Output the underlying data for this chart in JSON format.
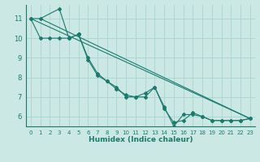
{
  "title": "",
  "xlabel": "Humidex (Indice chaleur)",
  "ylabel": "",
  "bg_color": "#cce8e4",
  "grid_color": "#aad4ce",
  "line_color": "#1a7a6e",
  "xlim": [
    -0.5,
    23.5
  ],
  "ylim": [
    5.5,
    11.7
  ],
  "yticks": [
    6,
    7,
    8,
    9,
    10,
    11
  ],
  "xticks": [
    0,
    1,
    2,
    3,
    4,
    5,
    6,
    7,
    8,
    9,
    10,
    11,
    12,
    13,
    14,
    15,
    16,
    17,
    18,
    19,
    20,
    21,
    22,
    23
  ],
  "line1_x": [
    0,
    1,
    3,
    4,
    5,
    5,
    6,
    7,
    8,
    9,
    10,
    11,
    12,
    13,
    14,
    15,
    16,
    17,
    18,
    19,
    20,
    21,
    22,
    23
  ],
  "line1_y": [
    11.0,
    11.0,
    11.5,
    10.0,
    10.2,
    10.2,
    9.0,
    8.2,
    7.8,
    7.5,
    7.0,
    7.0,
    7.0,
    7.5,
    6.5,
    5.5,
    6.1,
    6.1,
    6.0,
    5.8,
    5.8,
    5.8,
    5.8,
    5.9
  ],
  "line2_x": [
    0,
    1,
    2,
    3,
    4,
    5,
    6,
    7,
    8,
    9,
    10,
    11,
    12,
    13,
    14,
    15,
    16,
    17,
    18,
    19,
    20,
    21,
    22,
    23
  ],
  "line2_y": [
    11.0,
    10.0,
    10.0,
    10.0,
    10.0,
    10.2,
    8.9,
    8.1,
    7.8,
    7.4,
    7.1,
    7.0,
    7.2,
    7.5,
    6.4,
    5.7,
    5.8,
    6.2,
    6.0,
    5.8,
    5.8,
    5.8,
    5.8,
    5.9
  ],
  "line3_x": [
    0,
    23
  ],
  "line3_y": [
    11.0,
    5.9
  ],
  "line4_x": [
    1,
    23
  ],
  "line4_y": [
    11.0,
    5.9
  ]
}
